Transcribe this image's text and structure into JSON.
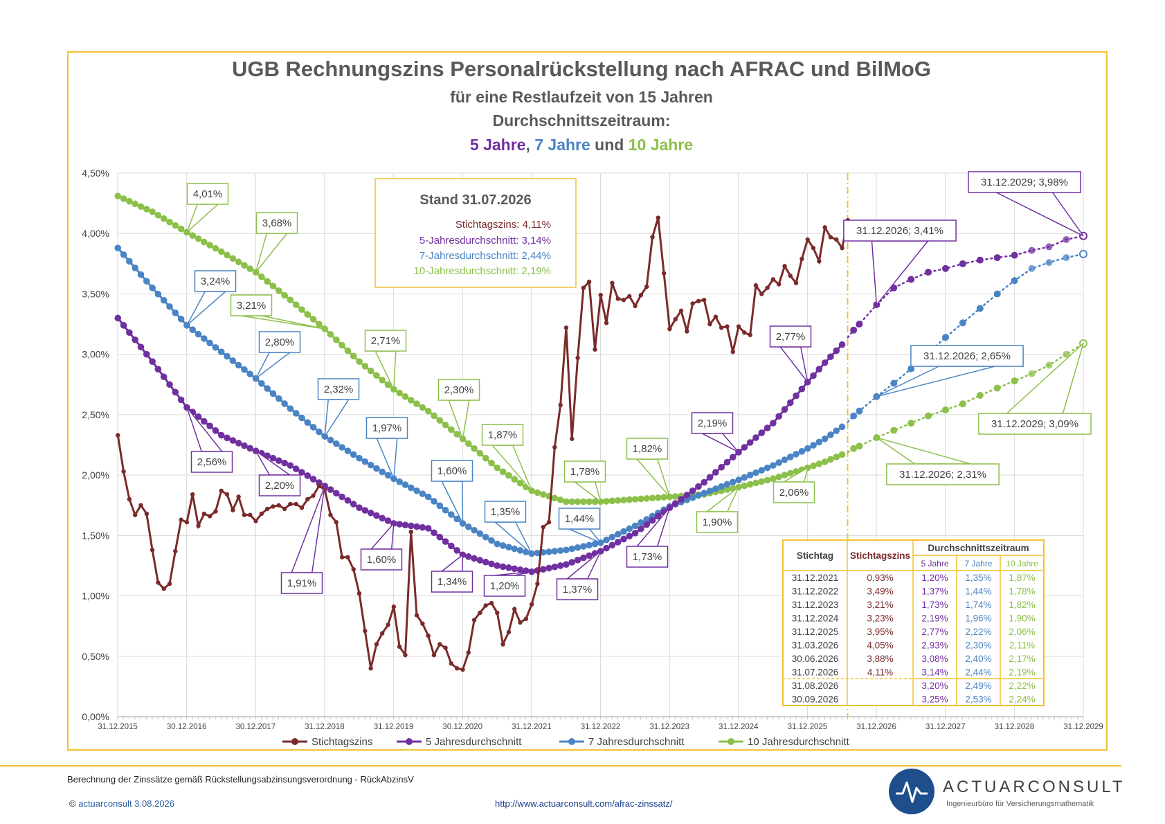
{
  "header": {
    "title": "UGB Rechnungszins Personalrückstellung nach AFRAC und BilMoG",
    "subtitle1": "für eine Restlaufzeit von 15 Jahren",
    "subtitle2": "Durchschnittszeitraum:",
    "sub3_a": "5 Jahre",
    "sub3_b": ", ",
    "sub3_c": "7 Jahre",
    "sub3_d": " und ",
    "sub3_e": "10 Jahre"
  },
  "colors": {
    "stichtag": "#7b2a2a",
    "y5": "#7030a0",
    "y7": "#4a84c4",
    "y10": "#8cc04a",
    "frame": "#f2c12e",
    "grid": "#d9d9d9"
  },
  "stand_box": {
    "title": "Stand 31.07.2026",
    "line1": "Stichtagszins: 4,11%",
    "line2": "5-Jahresdurchschnitt: 3,14%",
    "line3": "7-Jahresdurchschnitt: 2,44%",
    "line4": "10-Jahresdurchschnitt: 2,19%"
  },
  "chart_data": {
    "type": "line",
    "ylim": [
      0,
      4.5
    ],
    "yticks": [
      "0,00%",
      "0,50%",
      "1,00%",
      "1,50%",
      "2,00%",
      "2,50%",
      "3,00%",
      "3,50%",
      "4,00%",
      "4,50%"
    ],
    "xticks": [
      "31.12.2015",
      "30.12.2016",
      "30.12.2017",
      "31.12.2018",
      "31.12.2019",
      "30.12.2020",
      "31.12.2021",
      "31.12.2022",
      "31.12.2023",
      "31.12.2024",
      "31.12.2025",
      "31.12.2026",
      "31.12.2027",
      "31.12.2028",
      "31.12.2029"
    ],
    "xlim": [
      2015.9973,
      2029.9973
    ],
    "current_date_marker": 2026.58,
    "legend_position": "bottom",
    "series": [
      {
        "name": "Stichtagszins",
        "key": "stichtag",
        "x": [
          2016.0,
          2016.083,
          2016.167,
          2016.25,
          2016.333,
          2016.417,
          2016.5,
          2016.583,
          2016.667,
          2016.75,
          2016.833,
          2016.917,
          2017.0,
          2017.083,
          2017.167,
          2017.25,
          2017.333,
          2017.417,
          2017.5,
          2017.583,
          2017.667,
          2017.75,
          2017.833,
          2017.917,
          2018.0,
          2018.083,
          2018.167,
          2018.25,
          2018.333,
          2018.417,
          2018.5,
          2018.583,
          2018.667,
          2018.75,
          2018.833,
          2018.917,
          2019.0,
          2019.083,
          2019.167,
          2019.25,
          2019.333,
          2019.417,
          2019.5,
          2019.583,
          2019.667,
          2019.75,
          2019.833,
          2019.917,
          2020.0,
          2020.083,
          2020.167,
          2020.25,
          2020.333,
          2020.417,
          2020.5,
          2020.583,
          2020.667,
          2020.75,
          2020.833,
          2020.917,
          2021.0,
          2021.083,
          2021.167,
          2021.25,
          2021.333,
          2021.417,
          2021.5,
          2021.583,
          2021.667,
          2021.75,
          2021.833,
          2021.917,
          2022.0,
          2022.083,
          2022.167,
          2022.25,
          2022.333,
          2022.417,
          2022.5,
          2022.583,
          2022.667,
          2022.75,
          2022.833,
          2022.917,
          2023.0,
          2023.083,
          2023.167,
          2023.25,
          2023.333,
          2023.417,
          2023.5,
          2023.583,
          2023.667,
          2023.75,
          2023.833,
          2023.917,
          2024.0,
          2024.083,
          2024.167,
          2024.25,
          2024.333,
          2024.417,
          2024.5,
          2024.583,
          2024.667,
          2024.75,
          2024.833,
          2024.917,
          2025.0,
          2025.083,
          2025.167,
          2025.25,
          2025.333,
          2025.417,
          2025.5,
          2025.583,
          2025.667,
          2025.75,
          2025.833,
          2025.917,
          2026.0,
          2026.083,
          2026.167,
          2026.25,
          2026.333,
          2026.417,
          2026.5,
          2026.583
        ],
        "y": [
          2.33,
          2.03,
          1.8,
          1.67,
          1.75,
          1.68,
          1.38,
          1.11,
          1.06,
          1.1,
          1.37,
          1.63,
          1.61,
          1.84,
          1.58,
          1.68,
          1.66,
          1.7,
          1.87,
          1.84,
          1.71,
          1.82,
          1.67,
          1.67,
          1.62,
          1.68,
          1.72,
          1.74,
          1.75,
          1.72,
          1.76,
          1.76,
          1.73,
          1.8,
          1.83,
          1.91,
          1.88,
          1.67,
          1.61,
          1.32,
          1.32,
          1.22,
          1.02,
          0.71,
          0.4,
          0.6,
          0.69,
          0.76,
          0.91,
          0.58,
          0.51,
          1.53,
          0.84,
          0.77,
          0.67,
          0.51,
          0.6,
          0.57,
          0.44,
          0.4,
          0.39,
          0.53,
          0.8,
          0.86,
          0.92,
          0.94,
          0.86,
          0.6,
          0.7,
          0.89,
          0.78,
          0.81,
          0.93,
          1.1,
          1.57,
          1.61,
          2.23,
          2.58,
          3.22,
          2.3,
          2.97,
          3.55,
          3.6,
          3.04,
          3.49,
          3.26,
          3.59,
          3.46,
          3.45,
          3.48,
          3.4,
          3.49,
          3.56,
          3.97,
          4.13,
          3.67,
          3.21,
          3.29,
          3.36,
          3.19,
          3.42,
          3.44,
          3.45,
          3.25,
          3.31,
          3.22,
          3.23,
          3.02,
          3.23,
          3.18,
          3.16,
          3.57,
          3.5,
          3.55,
          3.62,
          3.58,
          3.73,
          3.65,
          3.59,
          3.79,
          3.95,
          3.88,
          3.77,
          4.05,
          3.97,
          3.95,
          3.88,
          4.11
        ]
      },
      {
        "name": "5 Jahresdurchschnitt",
        "key": "y5",
        "anchors": [
          [
            2016.0,
            3.3
          ],
          [
            2016.5,
            2.94
          ],
          [
            2017.0,
            2.56
          ],
          [
            2017.5,
            2.33
          ],
          [
            2018.0,
            2.2
          ],
          [
            2018.5,
            2.08
          ],
          [
            2019.0,
            1.91
          ],
          [
            2019.5,
            1.73
          ],
          [
            2020.0,
            1.6
          ],
          [
            2020.5,
            1.56
          ],
          [
            2021.0,
            1.34
          ],
          [
            2021.5,
            1.25
          ],
          [
            2022.0,
            1.2
          ],
          [
            2022.5,
            1.26
          ],
          [
            2023.0,
            1.37
          ],
          [
            2023.5,
            1.52
          ],
          [
            2024.0,
            1.73
          ],
          [
            2024.5,
            1.94
          ],
          [
            2025.0,
            2.19
          ],
          [
            2025.5,
            2.43
          ],
          [
            2026.0,
            2.77
          ],
          [
            2026.25,
            2.93
          ],
          [
            2026.5,
            3.08
          ],
          [
            2026.583,
            3.14
          ]
        ]
      },
      {
        "name": "7 Jahresdurchschnitt",
        "key": "y7",
        "anchors": [
          [
            2016.0,
            3.88
          ],
          [
            2016.5,
            3.55
          ],
          [
            2017.0,
            3.24
          ],
          [
            2017.5,
            3.02
          ],
          [
            2018.0,
            2.8
          ],
          [
            2018.5,
            2.55
          ],
          [
            2019.0,
            2.32
          ],
          [
            2019.5,
            2.14
          ],
          [
            2020.0,
            1.97
          ],
          [
            2020.5,
            1.82
          ],
          [
            2021.0,
            1.6
          ],
          [
            2021.5,
            1.43
          ],
          [
            2022.0,
            1.35
          ],
          [
            2022.5,
            1.38
          ],
          [
            2023.0,
            1.44
          ],
          [
            2023.5,
            1.58
          ],
          [
            2024.0,
            1.74
          ],
          [
            2024.5,
            1.85
          ],
          [
            2025.0,
            1.96
          ],
          [
            2025.5,
            2.08
          ],
          [
            2026.0,
            2.22
          ],
          [
            2026.25,
            2.3
          ],
          [
            2026.5,
            2.4
          ],
          [
            2026.583,
            2.44
          ]
        ]
      },
      {
        "name": "10 Jahresdurchschnitt",
        "key": "y10",
        "anchors": [
          [
            2016.0,
            4.31
          ],
          [
            2016.5,
            4.18
          ],
          [
            2017.0,
            4.01
          ],
          [
            2017.5,
            3.85
          ],
          [
            2018.0,
            3.68
          ],
          [
            2018.5,
            3.45
          ],
          [
            2019.0,
            3.21
          ],
          [
            2019.5,
            2.94
          ],
          [
            2020.0,
            2.71
          ],
          [
            2020.5,
            2.53
          ],
          [
            2021.0,
            2.3
          ],
          [
            2021.5,
            2.06
          ],
          [
            2022.0,
            1.87
          ],
          [
            2022.5,
            1.78
          ],
          [
            2023.0,
            1.78
          ],
          [
            2023.5,
            1.8
          ],
          [
            2024.0,
            1.82
          ],
          [
            2024.5,
            1.84
          ],
          [
            2025.0,
            1.9
          ],
          [
            2025.5,
            1.97
          ],
          [
            2026.0,
            2.06
          ],
          [
            2026.25,
            2.11
          ],
          [
            2026.5,
            2.17
          ],
          [
            2026.583,
            2.19
          ]
        ]
      }
    ],
    "forecast": {
      "y5": [
        [
          2026.583,
          3.14
        ],
        [
          2026.667,
          3.2
        ],
        [
          2026.75,
          3.25
        ],
        [
          2027.0,
          3.41
        ],
        [
          2027.25,
          3.55
        ],
        [
          2027.5,
          3.62
        ],
        [
          2027.75,
          3.68
        ],
        [
          2028.0,
          3.71
        ],
        [
          2028.25,
          3.75
        ],
        [
          2028.5,
          3.78
        ],
        [
          2028.75,
          3.8
        ],
        [
          2029.0,
          3.82
        ],
        [
          2029.25,
          3.86
        ],
        [
          2029.5,
          3.89
        ],
        [
          2029.75,
          3.95
        ],
        [
          2029.9973,
          3.98
        ]
      ],
      "y7": [
        [
          2026.583,
          2.44
        ],
        [
          2026.667,
          2.49
        ],
        [
          2026.75,
          2.53
        ],
        [
          2027.0,
          2.65
        ],
        [
          2027.25,
          2.76
        ],
        [
          2027.5,
          2.88
        ],
        [
          2027.75,
          3.01
        ],
        [
          2028.0,
          3.14
        ],
        [
          2028.25,
          3.26
        ],
        [
          2028.5,
          3.38
        ],
        [
          2028.75,
          3.5
        ],
        [
          2029.0,
          3.61
        ],
        [
          2029.25,
          3.71
        ],
        [
          2029.5,
          3.76
        ],
        [
          2029.75,
          3.8
        ],
        [
          2029.9973,
          3.83
        ]
      ],
      "y10": [
        [
          2026.583,
          2.19
        ],
        [
          2026.667,
          2.22
        ],
        [
          2026.75,
          2.24
        ],
        [
          2027.0,
          2.31
        ],
        [
          2027.25,
          2.37
        ],
        [
          2027.5,
          2.43
        ],
        [
          2027.75,
          2.49
        ],
        [
          2028.0,
          2.54
        ],
        [
          2028.25,
          2.59
        ],
        [
          2028.5,
          2.66
        ],
        [
          2028.75,
          2.72
        ],
        [
          2029.0,
          2.78
        ],
        [
          2029.25,
          2.84
        ],
        [
          2029.5,
          2.91
        ],
        [
          2029.75,
          3.0
        ],
        [
          2029.9973,
          3.09
        ]
      ]
    },
    "annotations": [
      {
        "text": "4,01%",
        "series": "y10",
        "x": 2017.0,
        "y": 4.01
      },
      {
        "text": "3,68%",
        "series": "y10",
        "x": 2018.0,
        "y": 3.68
      },
      {
        "text": "3,21%",
        "series": "y10",
        "x": 2019.0,
        "y": 3.21
      },
      {
        "text": "2,71%",
        "series": "y10",
        "x": 2020.0,
        "y": 2.71
      },
      {
        "text": "2,30%",
        "series": "y10",
        "x": 2021.0,
        "y": 2.3
      },
      {
        "text": "1,87%",
        "series": "y10",
        "x": 2022.0,
        "y": 1.87
      },
      {
        "text": "1,78%",
        "series": "y10",
        "x": 2023.0,
        "y": 1.78
      },
      {
        "text": "1,82%",
        "series": "y10",
        "x": 2024.0,
        "y": 1.82
      },
      {
        "text": "1,90%",
        "series": "y10",
        "x": 2025.0,
        "y": 1.9
      },
      {
        "text": "2,06%",
        "series": "y10",
        "x": 2026.0,
        "y": 2.06
      },
      {
        "text": "3,24%",
        "series": "y7",
        "x": 2017.0,
        "y": 3.24
      },
      {
        "text": "2,80%",
        "series": "y7",
        "x": 2018.0,
        "y": 2.8
      },
      {
        "text": "2,32%",
        "series": "y7",
        "x": 2019.0,
        "y": 2.32
      },
      {
        "text": "1,97%",
        "series": "y7",
        "x": 2020.0,
        "y": 1.97
      },
      {
        "text": "1,60%",
        "series": "y7",
        "x": 2021.0,
        "y": 1.6
      },
      {
        "text": "1,35%",
        "series": "y7",
        "x": 2022.0,
        "y": 1.35
      },
      {
        "text": "1,44%",
        "series": "y7",
        "x": 2023.0,
        "y": 1.44
      },
      {
        "text": "2,56%",
        "series": "y5",
        "x": 2017.0,
        "y": 2.56
      },
      {
        "text": "2,20%",
        "series": "y5",
        "x": 2018.0,
        "y": 2.2
      },
      {
        "text": "1,91%",
        "series": "y5",
        "x": 2019.0,
        "y": 1.91
      },
      {
        "text": "1,60%",
        "series": "y5",
        "x": 2020.0,
        "y": 1.6
      },
      {
        "text": "1,34%",
        "series": "y5",
        "x": 2021.0,
        "y": 1.34
      },
      {
        "text": "1,20%",
        "series": "y5",
        "x": 2022.0,
        "y": 1.2
      },
      {
        "text": "1,37%",
        "series": "y5",
        "x": 2023.0,
        "y": 1.37
      },
      {
        "text": "1,73%",
        "series": "y5",
        "x": 2024.0,
        "y": 1.73
      },
      {
        "text": "2,19%",
        "series": "y5",
        "x": 2025.0,
        "y": 2.19
      },
      {
        "text": "2,77%",
        "series": "y5",
        "x": 2026.0,
        "y": 2.77
      },
      {
        "text": "31.12.2026; 3,41%",
        "series": "y5",
        "x": 2027.0,
        "y": 3.41
      },
      {
        "text": "31.12.2029; 3,98%",
        "series": "y5",
        "x": 2029.9973,
        "y": 3.98
      },
      {
        "text": "31.12.2026; 2,65%",
        "series": "y7",
        "x": 2027.0,
        "y": 2.65
      },
      {
        "text": "31.12.2026; 2,31%",
        "series": "y10",
        "x": 2027.0,
        "y": 2.31
      },
      {
        "text": "31.12.2029; 3,09%",
        "series": "y10",
        "x": 2029.9973,
        "y": 3.09
      }
    ]
  },
  "table": {
    "header_stichtag": "Stichtag",
    "header_zins": "Stichtagszins",
    "header_group": "Durchschnittszeitraum",
    "header_5": "5 Jahre",
    "header_7": "7 Jahre",
    "header_10": "10 Jahre",
    "rows": [
      [
        "31.12.2021",
        "0,93%",
        "1,20%",
        "1,35%",
        "1,87%"
      ],
      [
        "31.12.2022",
        "3,49%",
        "1,37%",
        "1,44%",
        "1,78%"
      ],
      [
        "31.12.2023",
        "3,21%",
        "1,73%",
        "1,74%",
        "1,82%"
      ],
      [
        "31.12.2024",
        "3,23%",
        "2,19%",
        "1,96%",
        "1,90%"
      ],
      [
        "31.12.2025",
        "3,95%",
        "2,77%",
        "2,22%",
        "2,06%"
      ],
      [
        "31.03.2026",
        "4,05%",
        "2,93%",
        "2,30%",
        "2,11%"
      ],
      [
        "30.06.2026",
        "3,88%",
        "3,08%",
        "2,40%",
        "2,17%"
      ],
      [
        "31.07.2026",
        "4,11%",
        "3,14%",
        "2,44%",
        "2,19%"
      ],
      [
        "31.08.2026",
        "",
        "3,20%",
        "2,49%",
        "2,22%"
      ],
      [
        "30.09.2026",
        "",
        "3,25%",
        "2,53%",
        "2,24%"
      ]
    ]
  },
  "footer": {
    "note": "Berechnung der Zinssätze gemäß Rückstellungsabzinsungsverordnung - RückAbzinsV",
    "copyright_symbol": "©",
    "copyright_brand": "actuarconsult",
    "copyright_date": "3.08.2026",
    "url": "http://www.actuarconsult.com/afrac-zinssatz/",
    "logo_name": "ACTUARCONSULT",
    "logo_tagline": "Ingenieurbüro für Versicherungsmathematik"
  }
}
